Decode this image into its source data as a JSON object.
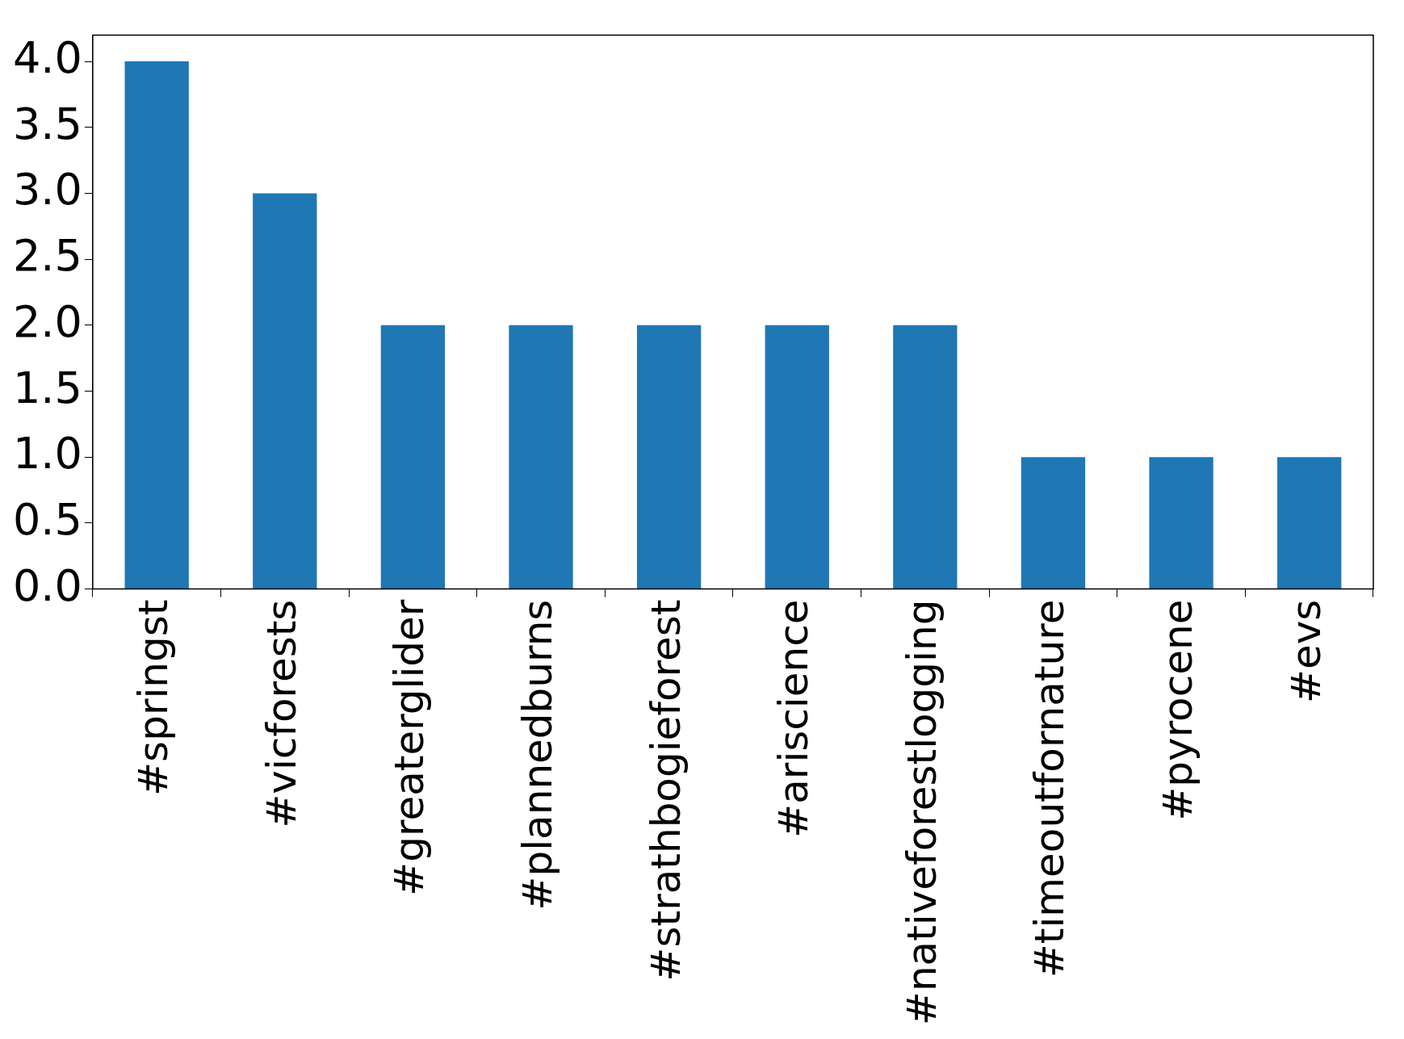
{
  "chart_data": {
    "type": "bar",
    "categories": [
      "#springst",
      "#vicforests",
      "#greaterglider",
      "#plannedburns",
      "#strathbogieforest",
      "#ariscience",
      "#nativeforestlogging",
      "#timeoutfornature",
      "#pyrocene",
      "#evs"
    ],
    "values": [
      4,
      3,
      2,
      2,
      2,
      2,
      2,
      1,
      1,
      1
    ],
    "color": "#1f77b4",
    "ylim": [
      0,
      4.2
    ],
    "yticks": [
      {
        "value": 0,
        "label": "0.0"
      },
      {
        "value": 0.5,
        "label": "0.5"
      },
      {
        "value": 1,
        "label": "1.0"
      },
      {
        "value": 1.5,
        "label": "1.5"
      },
      {
        "value": 2,
        "label": "2.0"
      },
      {
        "value": 2.5,
        "label": "2.5"
      },
      {
        "value": 3,
        "label": "3.0"
      },
      {
        "value": 3.5,
        "label": "3.5"
      },
      {
        "value": 4,
        "label": "4.0"
      }
    ],
    "grid": false,
    "legend": false
  }
}
